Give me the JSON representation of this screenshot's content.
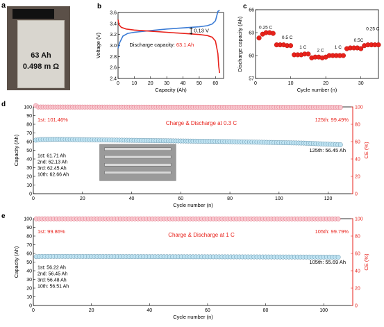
{
  "panel_labels": [
    "a",
    "b",
    "c",
    "d",
    "e"
  ],
  "photo": {
    "capacity_text": "63 Ah",
    "resistance_text": "0.498 m Ω"
  },
  "chart_data": [
    {
      "id": "b",
      "type": "line",
      "xlabel": "Capacity (Ah)",
      "ylabel": "Voltage (V)",
      "xlim": [
        0,
        65
      ],
      "ylim": [
        2.4,
        3.6
      ],
      "xticks": [
        0,
        10,
        20,
        30,
        40,
        50,
        60
      ],
      "yticks": [
        2.4,
        2.6,
        2.8,
        3.0,
        3.2,
        3.4,
        3.6
      ],
      "annotation": {
        "label": "Discharge capacity: ",
        "value": "63.1 Ah",
        "gap": "0.13 V"
      },
      "series": [
        {
          "color": "#3a7bd5",
          "points": [
            [
              0,
              2.95
            ],
            [
              1,
              3.05
            ],
            [
              3,
              3.17
            ],
            [
              6,
              3.22
            ],
            [
              10,
              3.24
            ],
            [
              20,
              3.27
            ],
            [
              30,
              3.3
            ],
            [
              40,
              3.32
            ],
            [
              50,
              3.34
            ],
            [
              55,
              3.36
            ],
            [
              58,
              3.39
            ],
            [
              60,
              3.45
            ],
            [
              61.5,
              3.62
            ],
            [
              62.5,
              3.64
            ]
          ]
        },
        {
          "color": "#e8221b",
          "points": [
            [
              0,
              3.47
            ],
            [
              0.5,
              3.38
            ],
            [
              2,
              3.33
            ],
            [
              5,
              3.3
            ],
            [
              10,
              3.28
            ],
            [
              20,
              3.26
            ],
            [
              30,
              3.24
            ],
            [
              40,
              3.22
            ],
            [
              50,
              3.2
            ],
            [
              55,
              3.18
            ],
            [
              58,
              3.15
            ],
            [
              60,
              3.08
            ],
            [
              61.5,
              2.85
            ],
            [
              62,
              2.62
            ],
            [
              62.5,
              2.5
            ]
          ]
        }
      ]
    },
    {
      "id": "c",
      "type": "scatter",
      "xlabel": "Cycle number (n)",
      "ylabel": "Discharge capacity (Ah)",
      "xlim": [
        0,
        35
      ],
      "ylim": [
        57,
        66
      ],
      "xticks": [
        0,
        10,
        20,
        30
      ],
      "yticks": [
        57,
        60,
        63,
        66
      ],
      "rate_labels": [
        {
          "text": "0.25 C",
          "x": 1,
          "y": 63.5
        },
        {
          "text": "0.5 C",
          "x": 7.5,
          "y": 62.2
        },
        {
          "text": "1 C",
          "x": 12.5,
          "y": 60.9
        },
        {
          "text": "2 C",
          "x": 17.5,
          "y": 60.5
        },
        {
          "text": "1 C",
          "x": 22.5,
          "y": 60.9
        },
        {
          "text": "0.5C",
          "x": 28,
          "y": 61.8
        },
        {
          "text": "0.25 C",
          "x": 31.5,
          "y": 63.3
        }
      ],
      "points": [
        [
          1,
          62.3
        ],
        [
          2,
          62.8
        ],
        [
          3,
          63.0
        ],
        [
          4,
          63.0
        ],
        [
          5,
          62.9
        ],
        [
          6,
          61.4
        ],
        [
          7,
          61.4
        ],
        [
          8,
          61.4
        ],
        [
          9,
          61.3
        ],
        [
          10,
          61.3
        ],
        [
          11,
          60.1
        ],
        [
          12,
          60.1
        ],
        [
          13,
          60.1
        ],
        [
          14,
          60.2
        ],
        [
          15,
          60.2
        ],
        [
          16,
          59.7
        ],
        [
          17,
          59.8
        ],
        [
          18,
          59.8
        ],
        [
          19,
          59.7
        ],
        [
          20,
          59.8
        ],
        [
          21,
          60.0
        ],
        [
          22,
          60.0
        ],
        [
          23,
          60.0
        ],
        [
          24,
          60.0
        ],
        [
          25,
          60.0
        ],
        [
          26,
          60.9
        ],
        [
          27,
          61.0
        ],
        [
          28,
          61.0
        ],
        [
          29,
          61.0
        ],
        [
          30,
          60.9
        ],
        [
          31,
          61.3
        ],
        [
          32,
          61.4
        ],
        [
          33,
          61.4
        ],
        [
          34,
          61.4
        ],
        [
          35,
          61.4
        ]
      ]
    },
    {
      "id": "d",
      "type": "scatter",
      "xlabel": "Cycle number (n)",
      "ylabel": "Capacity (Ah)",
      "ylabel2": "CE (%)",
      "xlim": [
        0,
        130
      ],
      "ylim": [
        0,
        100
      ],
      "y2lim": [
        0,
        100
      ],
      "xticks": [
        0,
        20,
        40,
        60,
        80,
        100,
        120
      ],
      "yticks": [
        0,
        10,
        20,
        30,
        40,
        50,
        60,
        70,
        80,
        90,
        100
      ],
      "y2ticks": [
        0,
        20,
        40,
        60,
        80,
        100
      ],
      "title_annotation": "Charge & Discharge at 0.3 C",
      "ce_first": {
        "label": "1st: ",
        "value": "101.46%"
      },
      "ce_last": {
        "label": "125th: ",
        "value": "99.49%"
      },
      "capacity_first_cycles": [
        "1st: 61.71 Ah",
        "2nd: 62.13 Ah",
        "3rd: 62.45 Ah",
        "10th: 62.66 Ah"
      ],
      "capacity_last": "125th: 56.45 Ah",
      "n_cycles": 125,
      "capacity_profile": [
        [
          1,
          61.71
        ],
        [
          2,
          62.13
        ],
        [
          3,
          62.45
        ],
        [
          10,
          62.66
        ],
        [
          40,
          61.5
        ],
        [
          80,
          60.0
        ],
        [
          110,
          58.3
        ],
        [
          125,
          56.45
        ]
      ],
      "ce_profile": [
        [
          1,
          101.46
        ],
        [
          2,
          99.9
        ],
        [
          125,
          99.49
        ]
      ]
    },
    {
      "id": "e",
      "type": "scatter",
      "xlabel": "Cycle number (n)",
      "ylabel": "Capacity (Ah)",
      "ylabel2": "CE (%)",
      "xlim": [
        0,
        110
      ],
      "ylim": [
        0,
        100
      ],
      "y2lim": [
        0,
        100
      ],
      "xticks": [
        0,
        20,
        40,
        60,
        80,
        100
      ],
      "yticks": [
        0,
        10,
        20,
        30,
        40,
        50,
        60,
        70,
        80,
        90,
        100
      ],
      "y2ticks": [
        0,
        20,
        40,
        60,
        80,
        100
      ],
      "title_annotation": "Charge & Discharge at 1 C",
      "ce_first": {
        "label": "1st: ",
        "value": "99.86%"
      },
      "ce_last": {
        "label": "105th: ",
        "value": "99.79%"
      },
      "capacity_first_cycles": [
        "1st: 56.22 Ah",
        "2nd: 56.45 Ah",
        "3rd: 56.48 Ah",
        "10th: 56.51 Ah"
      ],
      "capacity_last": "105th: 55.69 Ah",
      "n_cycles": 105,
      "capacity_profile": [
        [
          1,
          56.22
        ],
        [
          2,
          56.45
        ],
        [
          3,
          56.48
        ],
        [
          10,
          56.51
        ],
        [
          50,
          56.2
        ],
        [
          105,
          55.69
        ]
      ],
      "ce_profile": [
        [
          1,
          99.86
        ],
        [
          105,
          99.79
        ]
      ]
    }
  ]
}
